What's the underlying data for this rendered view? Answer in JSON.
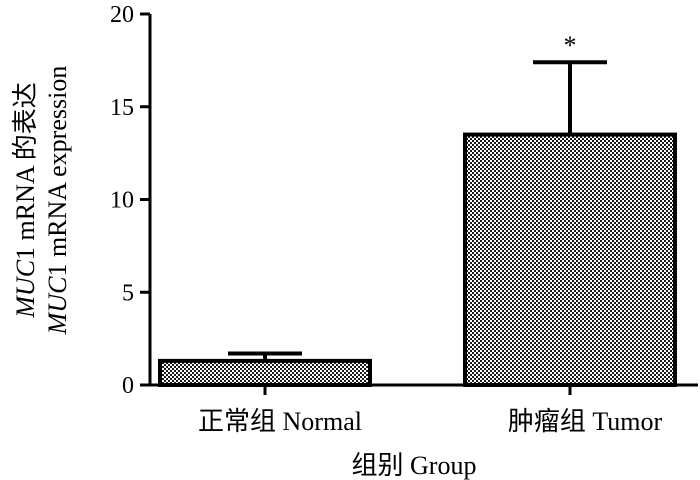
{
  "chart_data": {
    "type": "bar",
    "categories": [
      "正常组 Normal",
      "肿瘤组 Tumor"
    ],
    "values": [
      1.3,
      13.5
    ],
    "error_upper": [
      1.7,
      17.4
    ],
    "significance": [
      "",
      "*"
    ],
    "xlabel": "组别 Group",
    "ylabel_line1_italic": "MUC",
    "ylabel_line1_rest": "1 mRNA 的表达",
    "ylabel_line2_italic": "MUC",
    "ylabel_line2_rest": "1 mRNA expression",
    "ylim": [
      0,
      20
    ],
    "yticks": [
      "0",
      "5",
      "10",
      "15",
      "20"
    ],
    "grid": false,
    "bar_fill": "checkered grey",
    "colors": {
      "bar_dark": "#1a1a1a",
      "bar_light": "#ffffff",
      "axis": "#000000"
    }
  }
}
